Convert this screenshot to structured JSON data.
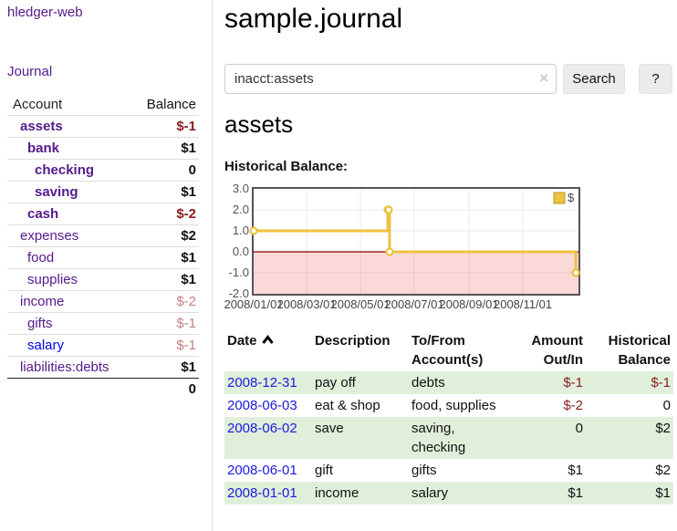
{
  "sidebar": {
    "app_title": "hledger-web",
    "journal_label": "Journal",
    "accounts_header": {
      "account": "Account",
      "balance": "Balance"
    },
    "accounts": [
      {
        "name": "assets",
        "indent": 1,
        "bold": true,
        "balance": "$-1",
        "balance_style": "neg-strong"
      },
      {
        "name": "bank",
        "indent": 2,
        "bold": true,
        "balance": "$1",
        "balance_style": "normal"
      },
      {
        "name": "checking",
        "indent": 3,
        "bold": true,
        "balance": "0",
        "balance_style": "normal"
      },
      {
        "name": "saving",
        "indent": 3,
        "bold": true,
        "balance": "$1",
        "balance_style": "normal"
      },
      {
        "name": "cash",
        "indent": 2,
        "bold": true,
        "balance": "$-2",
        "balance_style": "neg-strong"
      },
      {
        "name": "expenses",
        "indent": 1,
        "bold": false,
        "balance": "$2",
        "balance_style": "normal"
      },
      {
        "name": "food",
        "indent": 2,
        "bold": false,
        "balance": "$1",
        "balance_style": "normal"
      },
      {
        "name": "supplies",
        "indent": 2,
        "bold": false,
        "balance": "$1",
        "balance_style": "normal"
      },
      {
        "name": "income",
        "indent": 1,
        "bold": false,
        "balance": "$-2",
        "balance_style": "neg-faded"
      },
      {
        "name": "gifts",
        "indent": 2,
        "bold": false,
        "balance": "$-1",
        "balance_style": "neg-faded"
      },
      {
        "name": "salary",
        "indent": 2,
        "bold": false,
        "balance": "$-1",
        "balance_style": "neg-faded",
        "link_color": "blue"
      },
      {
        "name": "liabilities:debts",
        "indent": 1,
        "bold": false,
        "balance": "$1",
        "balance_style": "normal"
      }
    ],
    "total": "0"
  },
  "main": {
    "title": "sample.journal",
    "search": {
      "value": "inacct:assets",
      "clear_icon": "×",
      "button_label": "Search",
      "help_label": "?"
    },
    "account_heading": "assets"
  },
  "chart_data": {
    "type": "line",
    "step": true,
    "title": "Historical Balance:",
    "x": [
      "2008-01-01",
      "2008-06-01",
      "2008-06-02",
      "2008-06-03",
      "2008-12-31"
    ],
    "series": [
      {
        "name": "$",
        "color": "#edc240",
        "values": [
          1,
          2,
          2,
          0,
          -1
        ]
      }
    ],
    "ylim": [
      -2,
      3
    ],
    "yticks": [
      "3.0",
      "2.0",
      "1.0",
      "0.0",
      "-1.0",
      "-2.0"
    ],
    "xticks": [
      {
        "date": "2008-01-01",
        "label": "2008/01/01"
      },
      {
        "date": "2008-03-01",
        "label": "2008/03/01"
      },
      {
        "date": "2008-05-01",
        "label": "2008/05/01"
      },
      {
        "date": "2008-07-01",
        "label": "2008/07/01"
      },
      {
        "date": "2008-09-01",
        "label": "2008/09/01"
      },
      {
        "date": "2008-11-01",
        "label": "2008/11/01"
      }
    ],
    "xmin": "2008-01-01",
    "xmax": "2009-01-03",
    "grid": true,
    "legend_position": "top-right",
    "negative_fill": "#fbd9d9",
    "zero_line_color": "#8b0000",
    "marker_fill": "#ffffff"
  },
  "register": {
    "columns": [
      "Date",
      "Description",
      "To/From Account(s)",
      "Amount Out/In",
      "Historical Balance"
    ],
    "sort_column": "Date",
    "sort_direction": "asc",
    "rows": [
      {
        "date": "2008-12-31",
        "description": "pay off",
        "accounts": "debts",
        "amount": "$-1",
        "amount_neg": true,
        "balance": "$-1",
        "balance_neg": true
      },
      {
        "date": "2008-06-03",
        "description": "eat & shop",
        "accounts": "food, supplies",
        "amount": "$-2",
        "amount_neg": true,
        "balance": "0",
        "balance_neg": false
      },
      {
        "date": "2008-06-02",
        "description": "save",
        "accounts": "saving, checking",
        "amount": "0",
        "amount_neg": false,
        "balance": "$2",
        "balance_neg": false
      },
      {
        "date": "2008-06-01",
        "description": "gift",
        "accounts": "gifts",
        "amount": "$1",
        "amount_neg": false,
        "balance": "$2",
        "balance_neg": false
      },
      {
        "date": "2008-01-01",
        "description": "income",
        "accounts": "salary",
        "amount": "$1",
        "amount_neg": false,
        "balance": "$1",
        "balance_neg": false
      }
    ]
  },
  "colors": {
    "link_purple": "#551a8b",
    "link_blue": "#0000ee",
    "date_blue": "#1a1ae0",
    "negative_strong": "#8b1d1d",
    "negative_faded": "#c77f7f",
    "row_stripe_green": "#e0efda",
    "series_gold": "#edc240"
  }
}
